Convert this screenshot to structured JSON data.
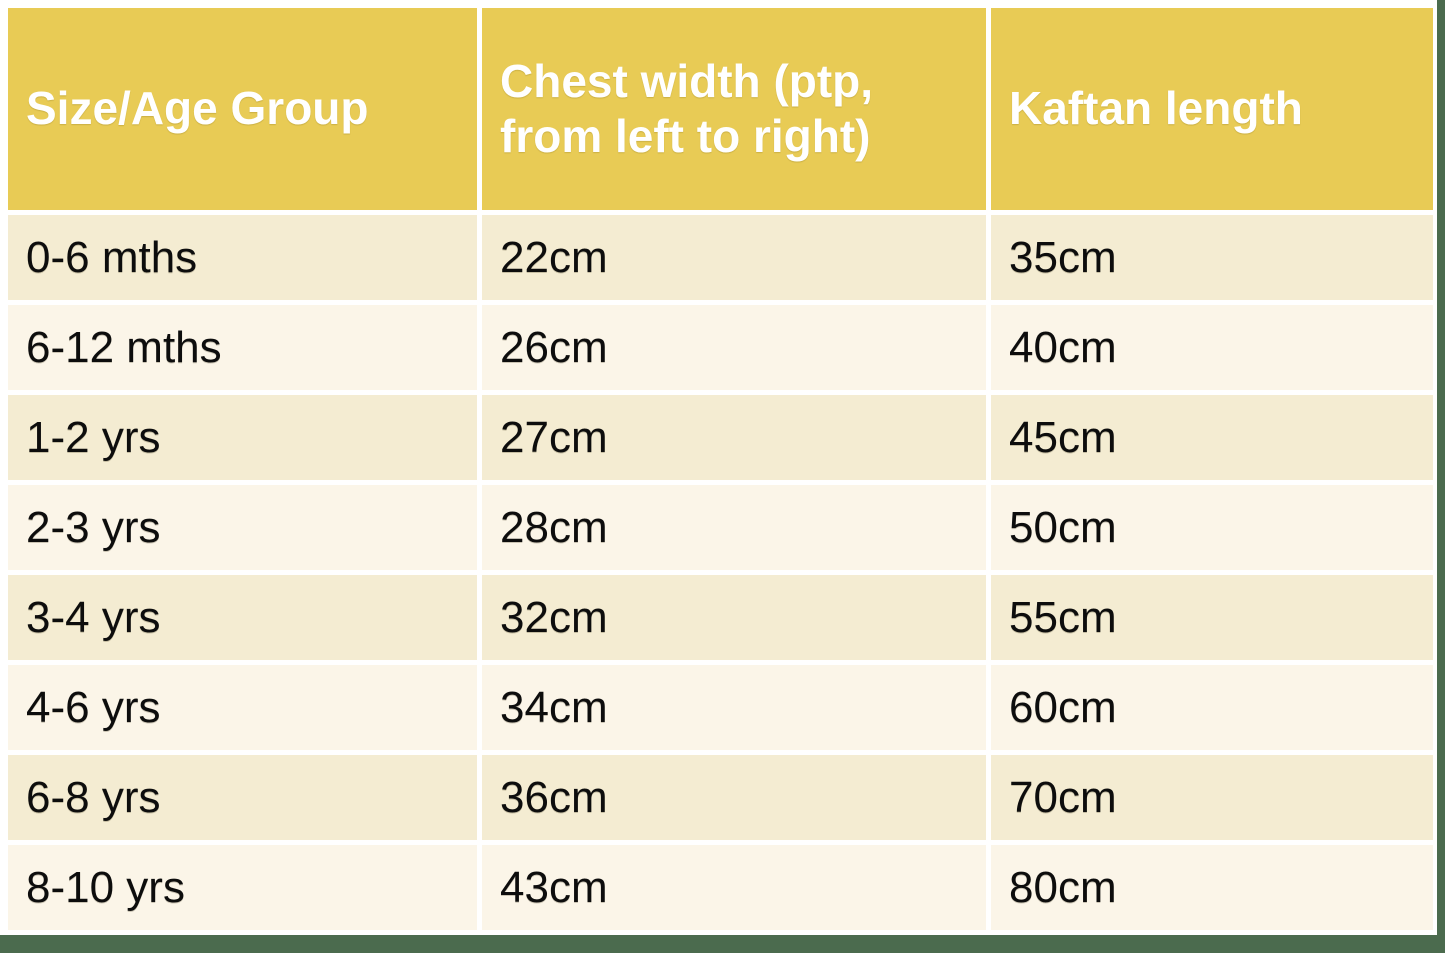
{
  "colors": {
    "header_bg": "#e8cb55",
    "header_text": "#ffffff",
    "row_odd_bg": "#f4ecd2",
    "row_even_bg": "#fbf5e8",
    "cell_text": "#0d0d0d",
    "frame_green": "#4b6b4e",
    "gap_white": "#ffffff"
  },
  "table": {
    "header": {
      "size_label": "Size/Age Group",
      "chest_label": "Chest width (ptp, from left to right)",
      "length_label": "Kaftan length"
    },
    "rows": [
      {
        "size": "0-6 mths",
        "chest": "22cm",
        "length": "35cm"
      },
      {
        "size": "6-12 mths",
        "chest": "26cm",
        "length": "40cm"
      },
      {
        "size": "1-2 yrs",
        "chest": "27cm",
        "length": "45cm"
      },
      {
        "size": "2-3 yrs",
        "chest": "28cm",
        "length": "50cm"
      },
      {
        "size": "3-4 yrs",
        "chest": "32cm",
        "length": "55cm"
      },
      {
        "size": "4-6 yrs",
        "chest": "34cm",
        "length": "60cm"
      },
      {
        "size": "6-8 yrs",
        "chest": "36cm",
        "length": "70cm"
      },
      {
        "size": "8-10 yrs",
        "chest": "43cm",
        "length": "80cm"
      }
    ]
  },
  "chart_data": {
    "type": "table",
    "columns": [
      "Size/Age Group",
      "Chest width (ptp, from left to right)",
      "Kaftan length"
    ],
    "rows": [
      [
        "0-6 mths",
        "22cm",
        "35cm"
      ],
      [
        "6-12 mths",
        "26cm",
        "40cm"
      ],
      [
        "1-2 yrs",
        "27cm",
        "45cm"
      ],
      [
        "2-3 yrs",
        "28cm",
        "50cm"
      ],
      [
        "3-4 yrs",
        "32cm",
        "55cm"
      ],
      [
        "4-6 yrs",
        "34cm",
        "60cm"
      ],
      [
        "6-8 yrs",
        "36cm",
        "70cm"
      ],
      [
        "8-10 yrs",
        "43cm",
        "80cm"
      ]
    ],
    "chest_width_cm": [
      22,
      26,
      27,
      28,
      32,
      34,
      36,
      43
    ],
    "kaftan_length_cm": [
      35,
      40,
      45,
      50,
      55,
      60,
      70,
      80
    ]
  }
}
